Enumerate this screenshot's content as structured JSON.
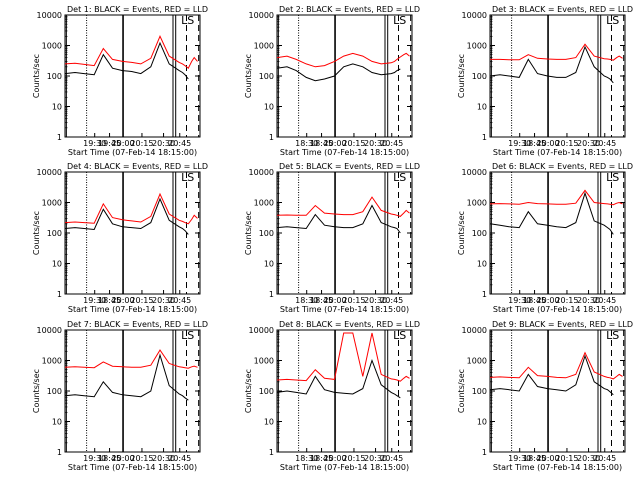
{
  "figure": {
    "start_time_label": "Start Time (07-Feb-14 18:15:00)",
    "ylabel": "Counts/sec",
    "ls_label": "LS",
    "colors": {
      "events": "#000000",
      "lld": "#ff0000",
      "axes": "#000000",
      "background": "#ffffff"
    }
  },
  "chart_data": [
    {
      "type": "line",
      "title": "Det 1: BLACK = Events, RED = LLD",
      "xlabel": "Start Time (07-Feb-14 18:15:00)",
      "ylabel": "Counts/sec",
      "y_scale": "log",
      "xlim": [
        "18:15",
        "20:57"
      ],
      "ylim": [
        1,
        10000
      ],
      "x_ticks": [
        "19:30",
        "19:45",
        "20:00",
        "20:15",
        "20:30",
        "20:45"
      ],
      "y_ticks": [
        "1",
        "10",
        "100",
        "1000",
        "10000"
      ],
      "x": [
        "18:15",
        "18:27",
        "18:38",
        "18:50",
        "19:01",
        "19:12",
        "19:24",
        "19:35",
        "19:46",
        "19:58",
        "20:09",
        "20:20",
        "20:32",
        "20:36",
        "20:39",
        "20:43",
        "20:47",
        "20:50",
        "20:54"
      ],
      "series": [
        {
          "name": "Events",
          "values": [
            120,
            130,
            120,
            110,
            500,
            180,
            150,
            140,
            120,
            200,
            1200,
            250,
            150,
            130,
            110,
            80,
            null,
            null,
            null
          ]
        },
        {
          "name": "LLD",
          "values": [
            250,
            260,
            240,
            220,
            800,
            350,
            300,
            280,
            250,
            380,
            2000,
            450,
            280,
            250,
            220,
            180,
            300,
            400,
            300
          ]
        }
      ]
    },
    {
      "type": "line",
      "title": "Det 2: BLACK = Events, RED = LLD",
      "xlabel": "Start Time (07-Feb-14 18:15:00)",
      "ylabel": "Counts/sec",
      "y_scale": "log",
      "xlim": [
        "18:15",
        "20:57"
      ],
      "ylim": [
        1,
        10000
      ],
      "x_ticks": [
        "18:30",
        "18:45",
        "20:00",
        "20:15",
        "20:30",
        "20:45"
      ],
      "y_ticks": [
        "1",
        "10",
        "100",
        "1000",
        "10000"
      ],
      "x": [
        "18:15",
        "18:27",
        "18:38",
        "18:50",
        "19:01",
        "19:12",
        "19:24",
        "19:35",
        "19:46",
        "19:58",
        "20:09",
        "20:20",
        "20:32",
        "20:36",
        "20:39",
        "20:43",
        "20:47",
        "20:50",
        "20:54"
      ],
      "series": [
        {
          "name": "Events",
          "values": [
            180,
            200,
            150,
            90,
            70,
            80,
            100,
            200,
            250,
            200,
            130,
            110,
            120,
            130,
            150,
            170,
            null,
            null,
            null
          ]
        },
        {
          "name": "LLD",
          "values": [
            400,
            450,
            350,
            250,
            200,
            220,
            300,
            450,
            550,
            450,
            300,
            250,
            270,
            300,
            350,
            420,
            500,
            550,
            450
          ]
        }
      ]
    },
    {
      "type": "line",
      "title": "Det 3: BLACK = Events, RED = LLD",
      "xlabel": "Start Time (07-Feb-14 18:15:00)",
      "ylabel": "Counts/sec",
      "y_scale": "log",
      "xlim": [
        "18:15",
        "20:57"
      ],
      "ylim": [
        1,
        10000
      ],
      "x_ticks": [
        "19:30",
        "18:45",
        "20:00",
        "20:15",
        "20:30",
        "20:45"
      ],
      "y_ticks": [
        "1",
        "10",
        "100",
        "1000",
        "10000"
      ],
      "x": [
        "18:15",
        "18:27",
        "18:38",
        "18:50",
        "19:01",
        "19:12",
        "19:24",
        "19:35",
        "19:46",
        "19:58",
        "20:09",
        "20:20",
        "20:32",
        "20:36",
        "20:39",
        "20:43",
        "20:47",
        "20:50",
        "20:54"
      ],
      "series": [
        {
          "name": "Events",
          "values": [
            100,
            110,
            100,
            90,
            350,
            120,
            100,
            90,
            90,
            130,
            900,
            200,
            100,
            90,
            80,
            60,
            null,
            null,
            null
          ]
        },
        {
          "name": "LLD",
          "values": [
            350,
            350,
            340,
            340,
            500,
            380,
            360,
            350,
            350,
            400,
            1100,
            450,
            370,
            360,
            350,
            330,
            400,
            450,
            380
          ]
        }
      ]
    },
    {
      "type": "line",
      "title": "Det 4: BLACK = Events, RED = LLD",
      "xlabel": "Start Time (07-Feb-14 18:15:00)",
      "ylabel": "Counts/sec",
      "y_scale": "log",
      "xlim": [
        "18:15",
        "20:57"
      ],
      "ylim": [
        1,
        10000
      ],
      "x_ticks": [
        "19:30",
        "18:45",
        "20:00",
        "20:15",
        "20:30",
        "20:45"
      ],
      "y_ticks": [
        "1",
        "10",
        "100",
        "1000",
        "10000"
      ],
      "x": [
        "18:15",
        "18:27",
        "18:38",
        "18:50",
        "19:01",
        "19:12",
        "19:24",
        "19:35",
        "19:46",
        "19:58",
        "20:09",
        "20:20",
        "20:32",
        "20:36",
        "20:39",
        "20:43",
        "20:47",
        "20:50",
        "20:54"
      ],
      "series": [
        {
          "name": "Events",
          "values": [
            140,
            150,
            140,
            130,
            600,
            200,
            160,
            150,
            140,
            220,
            1300,
            260,
            160,
            140,
            120,
            90,
            null,
            null,
            null
          ]
        },
        {
          "name": "LLD",
          "values": [
            220,
            230,
            220,
            210,
            900,
            320,
            270,
            250,
            230,
            350,
            1900,
            420,
            260,
            240,
            220,
            200,
            280,
            380,
            300
          ]
        }
      ]
    },
    {
      "type": "line",
      "title": "Det 5: BLACK = Events, RED = LLD",
      "xlabel": "Start Time (07-Feb-14 18:15:00)",
      "ylabel": "Counts/sec",
      "y_scale": "log",
      "xlim": [
        "18:15",
        "20:57"
      ],
      "ylim": [
        1,
        10000
      ],
      "x_ticks": [
        "18:30",
        "18:45",
        "20:00",
        "20:15",
        "20:30",
        "20:45"
      ],
      "y_ticks": [
        "1",
        "10",
        "100",
        "1000",
        "10000"
      ],
      "x": [
        "18:15",
        "18:27",
        "18:38",
        "18:50",
        "19:01",
        "19:12",
        "19:24",
        "19:35",
        "19:46",
        "19:58",
        "20:09",
        "20:20",
        "20:32",
        "20:36",
        "20:39",
        "20:43",
        "20:47",
        "20:50",
        "20:54"
      ],
      "series": [
        {
          "name": "Events",
          "values": [
            150,
            160,
            150,
            140,
            400,
            180,
            160,
            150,
            150,
            200,
            800,
            220,
            160,
            150,
            140,
            100,
            null,
            null,
            null
          ]
        },
        {
          "name": "LLD",
          "values": [
            380,
            390,
            380,
            380,
            800,
            450,
            420,
            400,
            400,
            500,
            1500,
            550,
            420,
            400,
            380,
            350,
            450,
            550,
            450
          ]
        }
      ]
    },
    {
      "type": "line",
      "title": "Det 6: BLACK = Events, RED = LLD",
      "xlabel": "Start Time (07-Feb-14 18:15:00)",
      "ylabel": "Counts/sec",
      "y_scale": "log",
      "xlim": [
        "18:15",
        "20:57"
      ],
      "ylim": [
        1,
        10000
      ],
      "x_ticks": [
        "19:30",
        "18:45",
        "20:00",
        "20:15",
        "20:30",
        "20:45"
      ],
      "y_ticks": [
        "1",
        "10",
        "100",
        "1000",
        "10000"
      ],
      "x": [
        "18:15",
        "18:27",
        "18:38",
        "18:50",
        "19:01",
        "19:12",
        "19:24",
        "19:35",
        "19:46",
        "19:58",
        "20:09",
        "20:20",
        "20:32",
        "20:36",
        "20:39",
        "20:43",
        "20:47",
        "20:50",
        "20:54"
      ],
      "series": [
        {
          "name": "Events",
          "values": [
            200,
            180,
            160,
            150,
            500,
            200,
            180,
            160,
            150,
            220,
            2000,
            250,
            180,
            150,
            130,
            90,
            null,
            null,
            null
          ]
        },
        {
          "name": "LLD",
          "values": [
            900,
            920,
            900,
            880,
            1000,
            920,
            900,
            880,
            880,
            950,
            2500,
            1000,
            920,
            900,
            880,
            850,
            950,
            1000,
            900
          ]
        }
      ]
    },
    {
      "type": "line",
      "title": "Det 7: BLACK = Events, RED = LLD",
      "xlabel": "Start Time (07-Feb-14 18:15:00)",
      "ylabel": "Counts/sec",
      "y_scale": "log",
      "xlim": [
        "18:15",
        "20:57"
      ],
      "ylim": [
        1,
        10000
      ],
      "x_ticks": [
        "19:30",
        "18:45",
        "20:00",
        "20:15",
        "20:30",
        "20:45"
      ],
      "y_ticks": [
        "1",
        "10",
        "100",
        "1000",
        "10000"
      ],
      "x": [
        "18:15",
        "18:27",
        "18:38",
        "18:50",
        "19:01",
        "19:12",
        "19:24",
        "19:35",
        "19:46",
        "19:58",
        "20:09",
        "20:20",
        "20:32",
        "20:36",
        "20:39",
        "20:43",
        "20:47",
        "20:50",
        "20:54"
      ],
      "series": [
        {
          "name": "Events",
          "values": [
            70,
            75,
            70,
            65,
            200,
            90,
            75,
            70,
            65,
            100,
            1500,
            150,
            80,
            70,
            60,
            50,
            null,
            null,
            null
          ]
        },
        {
          "name": "LLD",
          "values": [
            600,
            620,
            600,
            580,
            900,
            650,
            620,
            600,
            600,
            700,
            2200,
            800,
            620,
            600,
            580,
            560,
            620,
            650,
            600
          ]
        }
      ]
    },
    {
      "type": "line",
      "title": "Det 8: BLACK = Events, RED = LLD",
      "xlabel": "Start Time (07-Feb-14 18:15:00)",
      "ylabel": "Counts/sec",
      "y_scale": "log",
      "xlim": [
        "18:15",
        "20:57"
      ],
      "ylim": [
        1,
        10000
      ],
      "x_ticks": [
        "18:30",
        "18:45",
        "20:00",
        "20:15",
        "20:30",
        "20:45"
      ],
      "y_ticks": [
        "1",
        "10",
        "100",
        "1000",
        "10000"
      ],
      "x": [
        "18:15",
        "18:27",
        "18:38",
        "18:50",
        "19:01",
        "19:12",
        "19:24",
        "19:35",
        "19:46",
        "19:58",
        "20:09",
        "20:20",
        "20:32",
        "20:36",
        "20:39",
        "20:43",
        "20:47",
        "20:50",
        "20:54"
      ],
      "series": [
        {
          "name": "Events",
          "values": [
            90,
            100,
            90,
            80,
            300,
            110,
            90,
            85,
            80,
            120,
            1000,
            160,
            90,
            80,
            70,
            60,
            null,
            null,
            null
          ]
        },
        {
          "name": "LLD",
          "values": [
            230,
            240,
            230,
            220,
            500,
            260,
            240,
            8000,
            8000,
            300,
            8000,
            350,
            250,
            240,
            230,
            210,
            260,
            300,
            260
          ]
        }
      ]
    },
    {
      "type": "line",
      "title": "Det 9: BLACK = Events, RED = LLD",
      "xlabel": "Start Time (07-Feb-14 18:15:00)",
      "ylabel": "Counts/sec",
      "y_scale": "log",
      "xlim": [
        "18:15",
        "20:57"
      ],
      "ylim": [
        1,
        10000
      ],
      "x_ticks": [
        "19:30",
        "18:45",
        "20:00",
        "20:15",
        "20:30",
        "20:45"
      ],
      "y_ticks": [
        "1",
        "10",
        "100",
        "1000",
        "10000"
      ],
      "x": [
        "18:15",
        "18:27",
        "18:38",
        "18:50",
        "19:01",
        "19:12",
        "19:24",
        "19:35",
        "19:46",
        "19:58",
        "20:09",
        "20:20",
        "20:32",
        "20:36",
        "20:39",
        "20:43",
        "20:47",
        "20:50",
        "20:54"
      ],
      "series": [
        {
          "name": "Events",
          "values": [
            110,
            120,
            110,
            100,
            350,
            140,
            120,
            110,
            100,
            160,
            1400,
            200,
            120,
            110,
            95,
            75,
            null,
            null,
            null
          ]
        },
        {
          "name": "LLD",
          "values": [
            280,
            290,
            280,
            270,
            600,
            320,
            300,
            280,
            270,
            350,
            1800,
            420,
            300,
            280,
            270,
            250,
            300,
            350,
            300
          ]
        }
      ]
    }
  ]
}
